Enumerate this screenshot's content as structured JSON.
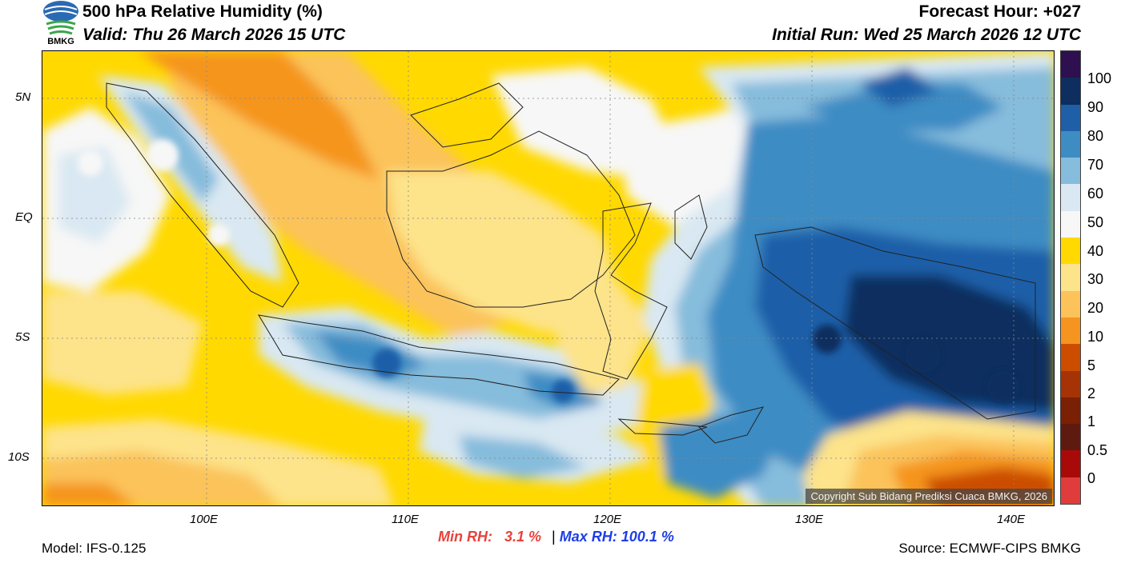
{
  "header": {
    "title": "500 hPa Relative Humidity (%)",
    "valid": "Valid: Thu 26 March 2026 15 UTC",
    "forecast_hour": "Forecast Hour: +027",
    "initial_run": "Initial Run: Wed 25 March 2026 12 UTC",
    "logo_text": "BMKG"
  },
  "map": {
    "lat_labels": [
      "5N",
      "EQ",
      "5S",
      "10S"
    ],
    "lon_labels": [
      "100E",
      "110E",
      "120E",
      "130E",
      "140E"
    ],
    "copyright": "Copyright Sub Bidang Prediksi Cuaca BMKG, 2026"
  },
  "colorbar": {
    "levels": [
      "100",
      "90",
      "80",
      "70",
      "60",
      "50",
      "40",
      "30",
      "20",
      "10",
      "5",
      "2",
      "1",
      "0.5",
      "0"
    ],
    "colors": [
      "#2e0f4f",
      "#0d2e5e",
      "#1f5fa8",
      "#3d8cc4",
      "#86bcdc",
      "#d9e8f2",
      "#f7f7f7",
      "#ffd900",
      "#fde38a",
      "#fbc35a",
      "#f5951f",
      "#cc4d00",
      "#a63306",
      "#7a2004",
      "#5e1a0f",
      "#a80a0a",
      "#e03c3c"
    ]
  },
  "stats": {
    "min_label": "Min RH:",
    "min_value": "3.1 %",
    "separator": "|",
    "max_label": "Max RH:",
    "max_value": "100.1 %"
  },
  "footer": {
    "model": "Model: IFS-0.125",
    "source": "Source: ECMWF-CIPS BMKG"
  }
}
